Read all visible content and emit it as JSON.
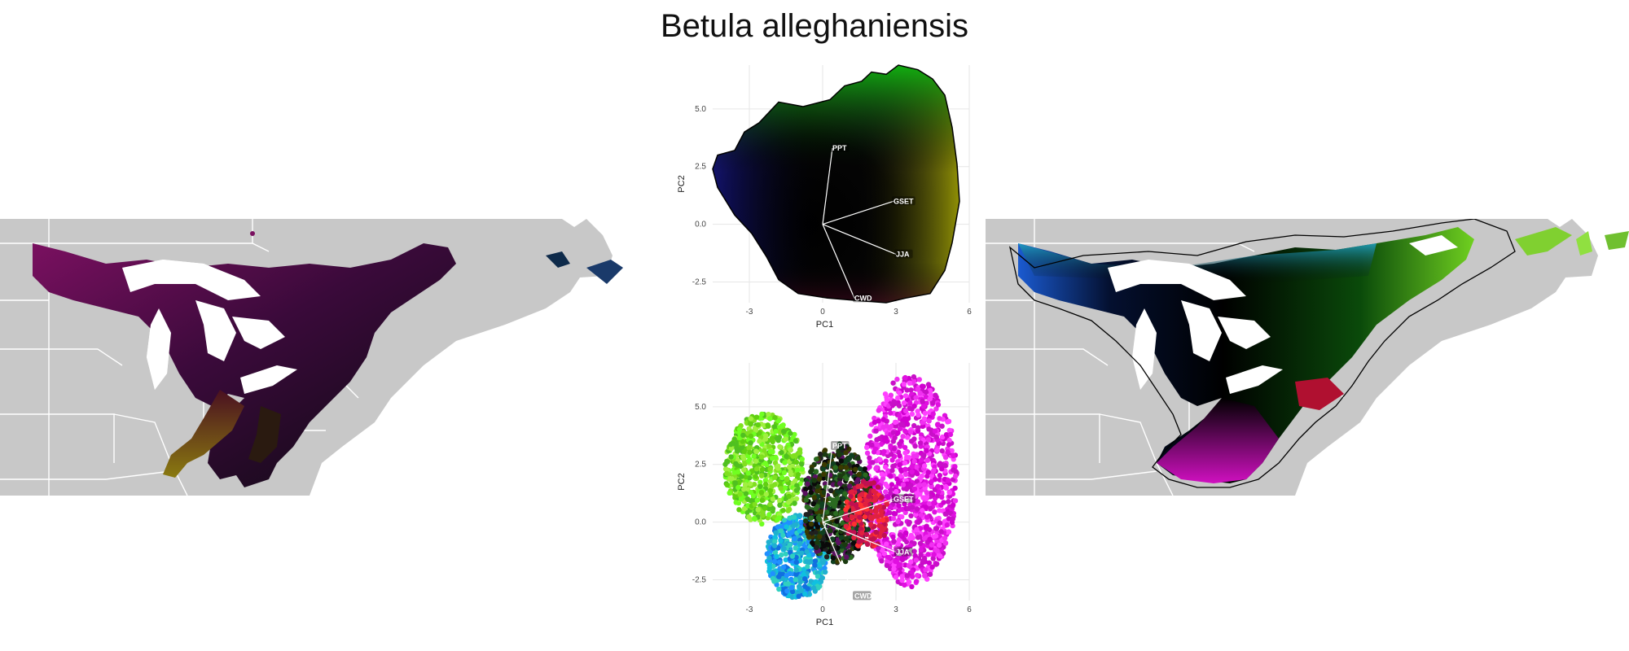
{
  "title": "Betula alleghaniensis",
  "colors": {
    "land": "#c8c8c8",
    "water": "#ffffff",
    "border": "#ffffff",
    "range_dark": "#000000"
  },
  "chart_data": [
    {
      "type": "scatter",
      "panel": "pca-top",
      "xlabel": "PC1",
      "ylabel": "PC2",
      "xticks": [
        "-3",
        "0",
        "3",
        "6"
      ],
      "yticks": [
        "5.0",
        "2.5",
        "0.0",
        "-2.5"
      ],
      "xlim": [
        -4.5,
        6
      ],
      "ylim": [
        -3.4,
        6.9
      ],
      "grid": true,
      "loadings": [
        {
          "label": "PPT",
          "x": 0.4,
          "y": 3.3
        },
        {
          "label": "GSET",
          "x": 2.9,
          "y": 1.0
        },
        {
          "label": "JJA",
          "x": 3.0,
          "y": -1.3
        },
        {
          "label": "CWD",
          "x": 1.3,
          "y": -3.2
        }
      ]
    },
    {
      "type": "scatter",
      "panel": "pca-bottom",
      "xlabel": "PC1",
      "ylabel": "PC2",
      "xticks": [
        "-3",
        "0",
        "3",
        "6"
      ],
      "yticks": [
        "5.0",
        "2.5",
        "0.0",
        "-2.5"
      ],
      "xlim": [
        -4.5,
        6
      ],
      "ylim": [
        -3.4,
        6.9
      ],
      "grid": true,
      "loadings": [
        {
          "label": "PPT",
          "x": 0.4,
          "y": 3.3
        },
        {
          "label": "GSET",
          "x": 2.9,
          "y": 1.0
        },
        {
          "label": "JJA",
          "x": 3.0,
          "y": -1.3
        },
        {
          "label": "CWD",
          "x": 1.3,
          "y": -3.2
        }
      ]
    }
  ]
}
